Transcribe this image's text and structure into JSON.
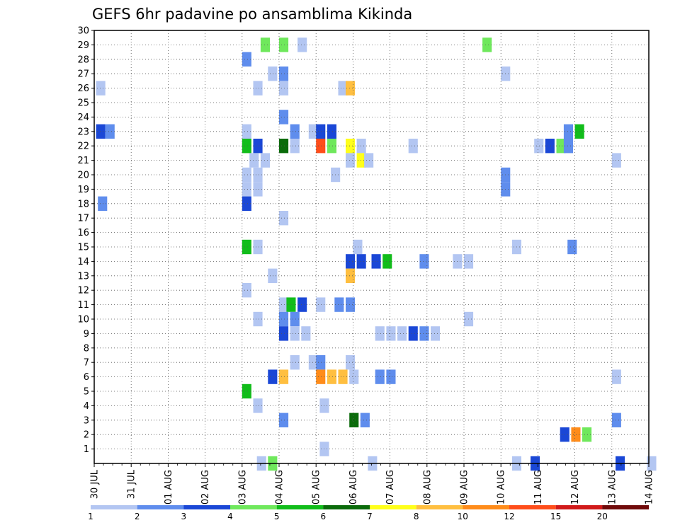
{
  "chart_data": {
    "type": "heatmap",
    "title": "GEFS 6hr padavine po ansamblima Kikinda",
    "xlabel": "",
    "ylabel": "",
    "x_ticks": [
      "30 JUL",
      "31 JUL",
      "01 AUG",
      "02 AUG",
      "03 AUG",
      "04 AUG",
      "05 AUG",
      "06 AUG",
      "07 AUG",
      "08 AUG",
      "09 AUG",
      "10 AUG",
      "11 AUG",
      "12 AUG",
      "13 AUG",
      "14 AUG"
    ],
    "y_ticks": [
      "1",
      "2",
      "3",
      "4",
      "5",
      "6",
      "7",
      "8",
      "9",
      "10",
      "11",
      "12",
      "13",
      "14",
      "15",
      "16",
      "17",
      "18",
      "19",
      "20",
      "21",
      "22",
      "23",
      "24",
      "25",
      "26",
      "27",
      "28",
      "29",
      "30"
    ],
    "y_range": [
      0,
      30
    ],
    "x_range_days": [
      0,
      15
    ],
    "time_step_hours": 6,
    "grid": "dotted",
    "colorbar": {
      "labels": [
        "1",
        "2",
        "3",
        "4",
        "5",
        "6",
        "7",
        "8",
        "10",
        "12",
        "15",
        "20"
      ],
      "colors": [
        "#b3c6f2",
        "#5f8ded",
        "#1a47d6",
        "#6fe85c",
        "#11bd1a",
        "#0a6b0a",
        "#ffff1a",
        "#ffbf40",
        "#ff8c1a",
        "#ff4d1a",
        "#d11a1a",
        "#700a0a"
      ]
    },
    "cells": [
      {
        "day": 0.05,
        "member": 26,
        "level": 1
      },
      {
        "day": 0.05,
        "member": 23,
        "level": 3
      },
      {
        "day": 0.3,
        "member": 23,
        "level": 2
      },
      {
        "day": 0.1,
        "member": 18,
        "level": 2
      },
      {
        "day": 4.5,
        "member": 29,
        "level": 4
      },
      {
        "day": 5.0,
        "member": 29,
        "level": 4
      },
      {
        "day": 5.5,
        "member": 29,
        "level": 1
      },
      {
        "day": 10.5,
        "member": 29,
        "level": 4
      },
      {
        "day": 4.0,
        "member": 28,
        "level": 2
      },
      {
        "day": 4.7,
        "member": 27,
        "level": 1
      },
      {
        "day": 5.0,
        "member": 27,
        "level": 2
      },
      {
        "day": 11.0,
        "member": 27,
        "level": 1
      },
      {
        "day": 4.3,
        "member": 26,
        "level": 1
      },
      {
        "day": 5.0,
        "member": 26,
        "level": 1
      },
      {
        "day": 6.6,
        "member": 26,
        "level": 1
      },
      {
        "day": 6.8,
        "member": 26,
        "level": 8
      },
      {
        "day": 5.0,
        "member": 24,
        "level": 2
      },
      {
        "day": 4.0,
        "member": 23,
        "level": 1
      },
      {
        "day": 5.3,
        "member": 23,
        "level": 2
      },
      {
        "day": 5.8,
        "member": 23,
        "level": 1
      },
      {
        "day": 6.0,
        "member": 23,
        "level": 3
      },
      {
        "day": 6.3,
        "member": 23,
        "level": 3
      },
      {
        "day": 12.7,
        "member": 23,
        "level": 2
      },
      {
        "day": 13.0,
        "member": 23,
        "level": 5
      },
      {
        "day": 4.0,
        "member": 22,
        "level": 5
      },
      {
        "day": 4.3,
        "member": 22,
        "level": 3
      },
      {
        "day": 5.0,
        "member": 22,
        "level": 6
      },
      {
        "day": 5.3,
        "member": 22,
        "level": 1
      },
      {
        "day": 6.0,
        "member": 22,
        "level": 12
      },
      {
        "day": 6.3,
        "member": 22,
        "level": 4
      },
      {
        "day": 6.8,
        "member": 22,
        "level": 7
      },
      {
        "day": 7.1,
        "member": 22,
        "level": 1
      },
      {
        "day": 8.5,
        "member": 22,
        "level": 1
      },
      {
        "day": 11.9,
        "member": 22,
        "level": 1
      },
      {
        "day": 12.2,
        "member": 22,
        "level": 3
      },
      {
        "day": 12.5,
        "member": 22,
        "level": 4
      },
      {
        "day": 12.7,
        "member": 22,
        "level": 2
      },
      {
        "day": 4.2,
        "member": 21,
        "level": 1
      },
      {
        "day": 4.5,
        "member": 21,
        "level": 1
      },
      {
        "day": 6.8,
        "member": 21,
        "level": 1
      },
      {
        "day": 7.1,
        "member": 21,
        "level": 7
      },
      {
        "day": 7.3,
        "member": 21,
        "level": 1
      },
      {
        "day": 14.0,
        "member": 21,
        "level": 1
      },
      {
        "day": 4.0,
        "member": 20,
        "level": 1
      },
      {
        "day": 4.3,
        "member": 20,
        "level": 1
      },
      {
        "day": 6.4,
        "member": 20,
        "level": 1
      },
      {
        "day": 11.0,
        "member": 20,
        "level": 2
      },
      {
        "day": 4.0,
        "member": 19,
        "level": 1
      },
      {
        "day": 4.3,
        "member": 19,
        "level": 1
      },
      {
        "day": 11.0,
        "member": 19,
        "level": 2
      },
      {
        "day": 4.0,
        "member": 18,
        "level": 3
      },
      {
        "day": 5.0,
        "member": 17,
        "level": 1
      },
      {
        "day": 4.0,
        "member": 15,
        "level": 5
      },
      {
        "day": 4.3,
        "member": 15,
        "level": 1
      },
      {
        "day": 7.0,
        "member": 15,
        "level": 1
      },
      {
        "day": 11.3,
        "member": 15,
        "level": 1
      },
      {
        "day": 12.8,
        "member": 15,
        "level": 2
      },
      {
        "day": 6.8,
        "member": 14,
        "level": 3
      },
      {
        "day": 7.1,
        "member": 14,
        "level": 3
      },
      {
        "day": 7.5,
        "member": 14,
        "level": 3
      },
      {
        "day": 7.8,
        "member": 14,
        "level": 5
      },
      {
        "day": 8.8,
        "member": 14,
        "level": 2
      },
      {
        "day": 9.7,
        "member": 14,
        "level": 1
      },
      {
        "day": 10.0,
        "member": 14,
        "level": 1
      },
      {
        "day": 4.7,
        "member": 13,
        "level": 1
      },
      {
        "day": 6.8,
        "member": 13,
        "level": 8
      },
      {
        "day": 4.0,
        "member": 12,
        "level": 1
      },
      {
        "day": 5.0,
        "member": 11,
        "level": 1
      },
      {
        "day": 5.2,
        "member": 11,
        "level": 5
      },
      {
        "day": 5.5,
        "member": 11,
        "level": 3
      },
      {
        "day": 6.0,
        "member": 11,
        "level": 1
      },
      {
        "day": 6.5,
        "member": 11,
        "level": 2
      },
      {
        "day": 6.8,
        "member": 11,
        "level": 2
      },
      {
        "day": 4.3,
        "member": 10,
        "level": 1
      },
      {
        "day": 5.0,
        "member": 10,
        "level": 2
      },
      {
        "day": 5.3,
        "member": 10,
        "level": 2
      },
      {
        "day": 10.0,
        "member": 10,
        "level": 1
      },
      {
        "day": 5.0,
        "member": 9,
        "level": 3
      },
      {
        "day": 5.3,
        "member": 9,
        "level": 1
      },
      {
        "day": 5.6,
        "member": 9,
        "level": 1
      },
      {
        "day": 7.6,
        "member": 9,
        "level": 1
      },
      {
        "day": 7.9,
        "member": 9,
        "level": 1
      },
      {
        "day": 8.2,
        "member": 9,
        "level": 1
      },
      {
        "day": 8.5,
        "member": 9,
        "level": 3
      },
      {
        "day": 8.8,
        "member": 9,
        "level": 2
      },
      {
        "day": 9.1,
        "member": 9,
        "level": 1
      },
      {
        "day": 5.3,
        "member": 7,
        "level": 1
      },
      {
        "day": 5.8,
        "member": 7,
        "level": 1
      },
      {
        "day": 6.0,
        "member": 7,
        "level": 2
      },
      {
        "day": 6.8,
        "member": 7,
        "level": 1
      },
      {
        "day": 4.7,
        "member": 6,
        "level": 3
      },
      {
        "day": 5.0,
        "member": 6,
        "level": 8
      },
      {
        "day": 6.0,
        "member": 6,
        "level": 10
      },
      {
        "day": 6.3,
        "member": 6,
        "level": 8
      },
      {
        "day": 6.6,
        "member": 6,
        "level": 8
      },
      {
        "day": 6.9,
        "member": 6,
        "level": 1
      },
      {
        "day": 7.6,
        "member": 6,
        "level": 2
      },
      {
        "day": 7.9,
        "member": 6,
        "level": 2
      },
      {
        "day": 14.0,
        "member": 6,
        "level": 1
      },
      {
        "day": 4.0,
        "member": 5,
        "level": 5
      },
      {
        "day": 4.3,
        "member": 4,
        "level": 1
      },
      {
        "day": 6.1,
        "member": 4,
        "level": 1
      },
      {
        "day": 5.0,
        "member": 3,
        "level": 2
      },
      {
        "day": 6.9,
        "member": 3,
        "level": 6
      },
      {
        "day": 7.2,
        "member": 3,
        "level": 2
      },
      {
        "day": 14.0,
        "member": 3,
        "level": 2
      },
      {
        "day": 12.6,
        "member": 2,
        "level": 3
      },
      {
        "day": 12.9,
        "member": 2,
        "level": 10
      },
      {
        "day": 13.2,
        "member": 2,
        "level": 4
      },
      {
        "day": 6.1,
        "member": 1,
        "level": 1
      },
      {
        "day": 4.4,
        "member": 0,
        "level": 1
      },
      {
        "day": 4.7,
        "member": 0,
        "level": 4
      },
      {
        "day": 7.4,
        "member": 0,
        "level": 1
      },
      {
        "day": 11.3,
        "member": 0,
        "level": 1
      },
      {
        "day": 11.8,
        "member": 0,
        "level": 3
      },
      {
        "day": 14.1,
        "member": 0,
        "level": 3
      },
      {
        "day": 14.95,
        "member": 0,
        "level": 1
      }
    ]
  }
}
